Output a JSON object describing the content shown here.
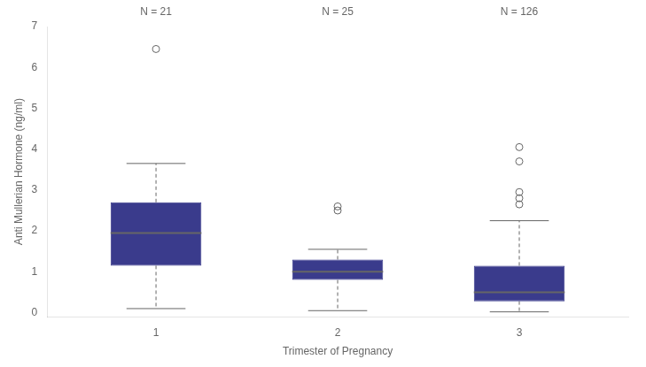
{
  "chart_data": {
    "type": "box",
    "xlabel": "Trimester of Pregnancy",
    "ylabel": "Anti Mullerian Hormone (ng/ml)",
    "xlim": [
      0.4,
      3.6
    ],
    "xticks": [
      1,
      2,
      3
    ],
    "ylim": [
      -0.1,
      7.0
    ],
    "yticks": [
      0,
      1,
      2,
      3,
      4,
      5,
      6,
      7
    ],
    "color": "#3A3B8C",
    "grid": false,
    "groups": [
      {
        "x": 1,
        "q1": 1.15,
        "median": 1.95,
        "q3": 2.7,
        "whisker_low": 0.1,
        "whisker_high": 3.65,
        "outliers": [
          6.45
        ]
      },
      {
        "x": 2,
        "q1": 0.8,
        "median": 1.0,
        "q3": 1.3,
        "whisker_low": 0.05,
        "whisker_high": 1.55,
        "outliers": [
          2.5,
          2.6
        ]
      },
      {
        "x": 3,
        "q1": 0.28,
        "median": 0.5,
        "q3": 1.15,
        "whisker_low": 0.02,
        "whisker_high": 2.25,
        "outliers": [
          2.65,
          2.8,
          2.95,
          3.7,
          4.05
        ]
      }
    ],
    "annotations": [
      {
        "x": 1,
        "text": "N = 21"
      },
      {
        "x": 2,
        "text": "N = 25"
      },
      {
        "x": 3,
        "text": "N = 126"
      }
    ]
  }
}
